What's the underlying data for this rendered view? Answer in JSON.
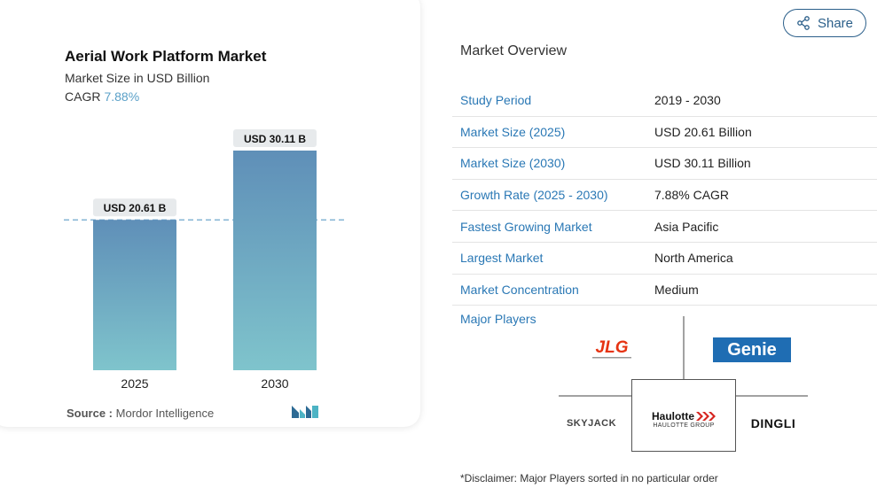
{
  "share": {
    "label": "Share",
    "icon": "share-icon"
  },
  "chart_data": {
    "type": "bar",
    "title": "Aerial Work Platform Market",
    "subtitle": "Market Size in USD Billion",
    "cagr_label": "CAGR",
    "cagr_value": "7.88%",
    "categories": [
      "2025",
      "2030"
    ],
    "values": [
      20.61,
      30.11
    ],
    "data_labels": [
      "USD 20.61 B",
      "USD 30.11 B"
    ],
    "ylim": [
      0,
      30.11
    ],
    "grid": false,
    "reference_line": 20.61,
    "colors": {
      "bar_top": "#5f8fb8",
      "bar_bottom": "#7fc4cc",
      "label_bg": "#e7eaec",
      "ref_line": "#6fa6cc"
    }
  },
  "source": {
    "label": "Source :",
    "value": "Mordor Intelligence"
  },
  "overview": {
    "title": "Market Overview",
    "rows": [
      {
        "key": "Study Period",
        "value": "2019 - 2030"
      },
      {
        "key": "Market Size (2025)",
        "value": "USD 20.61 Billion"
      },
      {
        "key": "Market Size (2030)",
        "value": "USD 30.11 Billion"
      },
      {
        "key": "Growth Rate (2025 - 2030)",
        "value": "7.88% CAGR"
      },
      {
        "key": "Fastest Growing Market",
        "value": "Asia Pacific"
      },
      {
        "key": "Largest Market",
        "value": "North America"
      },
      {
        "key": "Market Concentration",
        "value": "Medium"
      }
    ]
  },
  "major_players": {
    "title": "Major Players",
    "logos": {
      "jlg": "JLG",
      "genie": "Genie",
      "haulotte": "Haulotte",
      "haulotte_group": "HAULOTTE GROUP",
      "skyjack": "SKYJACK",
      "dingli": "DINGLI"
    }
  },
  "disclaimer": "*Disclaimer: Major Players sorted in no particular order"
}
